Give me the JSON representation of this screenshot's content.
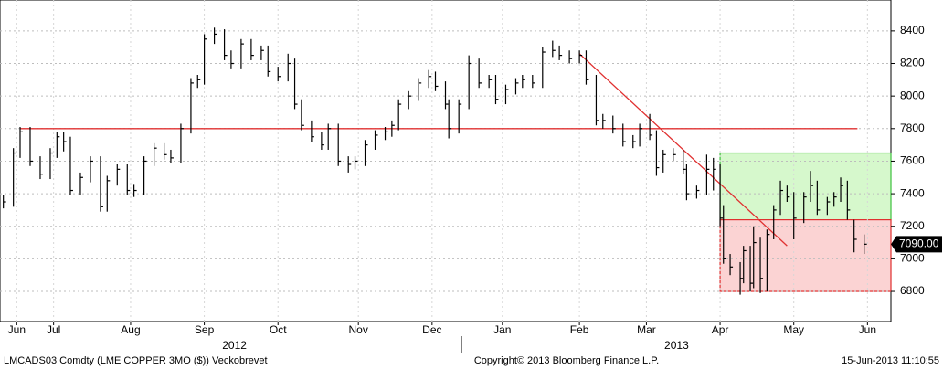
{
  "chart_data": {
    "type": "hlc",
    "footer_left": "LMCADS03 Comdty (LME COPPER    3MO ($)) Veckobrevet",
    "footer_center": "Copyright© 2013 Bloomberg Finance L.P.",
    "footer_right": "15-Jun-2013 11:10:55",
    "x": [
      0,
      3,
      5,
      8,
      11,
      14,
      16,
      18,
      20,
      23,
      26,
      29,
      31,
      34,
      37,
      39,
      42,
      45,
      48,
      50,
      53,
      56,
      58,
      60,
      63,
      66,
      68,
      71,
      74,
      77,
      79,
      82,
      85,
      87,
      89,
      92,
      95,
      97,
      100,
      103,
      105,
      108,
      111,
      114,
      116,
      118,
      121,
      124,
      127,
      129,
      132,
      133,
      136,
      139,
      142,
      145,
      147,
      150,
      153,
      155,
      158,
      161,
      164,
      166,
      169,
      172,
      174,
      177,
      179,
      182,
      185,
      188,
      190,
      193,
      195,
      197,
      200,
      203,
      204,
      207,
      210,
      212,
      214,
      215,
      217,
      220,
      221,
      223,
      224,
      226,
      228,
      230,
      232,
      234,
      236,
      239,
      241,
      243,
      246,
      248,
      250,
      252,
      254,
      257
    ],
    "close": [
      7350,
      7650,
      7780,
      7600,
      7520,
      7650,
      7750,
      7720,
      7420,
      7500,
      7600,
      7320,
      7480,
      7550,
      7420,
      7420,
      7600,
      7680,
      7640,
      7620,
      7800,
      8080,
      8100,
      8350,
      8380,
      8250,
      8200,
      8320,
      8250,
      8280,
      8150,
      8120,
      8200,
      7950,
      7820,
      7750,
      7700,
      7800,
      7600,
      7580,
      7600,
      7700,
      7760,
      7780,
      7820,
      7950,
      8000,
      8080,
      8120,
      8060,
      7950,
      7800,
      7950,
      8200,
      8080,
      8100,
      7980,
      8040,
      8080,
      8100,
      8080,
      8270,
      8280,
      8250,
      8230,
      8250,
      8100,
      7850,
      7850,
      7800,
      7720,
      7720,
      7800,
      7760,
      7560,
      7640,
      7640,
      7550,
      7400,
      7420,
      7550,
      7550,
      7250,
      7000,
      6950,
      6880,
      7050,
      6850,
      7100,
      6880,
      7150,
      7300,
      7420,
      7380,
      7250,
      7380,
      7450,
      7300,
      7350,
      7380,
      7450,
      7300,
      7120,
      7090
    ],
    "high": [
      7390,
      7680,
      7810,
      7810,
      7630,
      7680,
      7780,
      7780,
      7750,
      7530,
      7630,
      7630,
      7510,
      7580,
      7580,
      7460,
      7630,
      7710,
      7710,
      7670,
      7830,
      8110,
      8130,
      8380,
      8420,
      8410,
      8280,
      8350,
      8350,
      8310,
      8310,
      8180,
      8260,
      8230,
      7980,
      7850,
      7780,
      7830,
      7830,
      7630,
      7630,
      7730,
      7790,
      7810,
      7850,
      7980,
      8030,
      8110,
      8160,
      8150,
      8090,
      7980,
      7980,
      8250,
      8230,
      8130,
      8130,
      8070,
      8110,
      8130,
      8130,
      8300,
      8340,
      8310,
      8280,
      8280,
      8280,
      8130,
      7890,
      7880,
      7830,
      7760,
      7830,
      7890,
      7790,
      7670,
      7680,
      7670,
      7580,
      7450,
      7640,
      7620,
      7580,
      7330,
      7030,
      6980,
      7080,
      7080,
      7200,
      7130,
      7180,
      7330,
      7480,
      7450,
      7410,
      7410,
      7540,
      7480,
      7380,
      7410,
      7500,
      7480,
      7240,
      7150
    ],
    "low": [
      7310,
      7320,
      7620,
      7570,
      7490,
      7490,
      7620,
      7660,
      7390,
      7390,
      7470,
      7290,
      7290,
      7450,
      7390,
      7380,
      7390,
      7570,
      7610,
      7590,
      7590,
      7770,
      8050,
      8070,
      8320,
      8220,
      8170,
      8170,
      8220,
      8220,
      8120,
      8090,
      8090,
      7920,
      7790,
      7720,
      7670,
      7670,
      7570,
      7530,
      7550,
      7570,
      7670,
      7730,
      7750,
      7790,
      7920,
      7970,
      8050,
      8030,
      7920,
      7740,
      7770,
      7920,
      8050,
      8050,
      7950,
      7950,
      8010,
      8050,
      8050,
      8050,
      8240,
      8220,
      8200,
      8200,
      8070,
      7820,
      7800,
      7770,
      7690,
      7680,
      7690,
      7730,
      7510,
      7530,
      7600,
      7520,
      7360,
      7370,
      7390,
      7420,
      7200,
      6970,
      6900,
      6780,
      6850,
      6800,
      6820,
      6790,
      6800,
      7120,
      7270,
      7350,
      7120,
      7220,
      7350,
      7270,
      7270,
      7320,
      7350,
      7240,
      7040,
      7030
    ],
    "color": "#000000",
    "xlim": [
      -1,
      265
    ],
    "ylim": [
      6615,
      8590
    ],
    "yticks": [
      6800,
      7000,
      7200,
      7400,
      7600,
      7800,
      8000,
      8200,
      8400
    ],
    "xticks": [
      {
        "value": 4,
        "label": "Jun"
      },
      {
        "value": 15,
        "label": "Jul"
      },
      {
        "value": 38,
        "label": "Aug"
      },
      {
        "value": 60,
        "label": "Sep"
      },
      {
        "value": 82,
        "label": "Oct"
      },
      {
        "value": 106,
        "label": "Nov"
      },
      {
        "value": 128,
        "label": "Dec"
      },
      {
        "value": 149,
        "label": "Jan"
      },
      {
        "value": 172,
        "label": "Feb"
      },
      {
        "value": 192,
        "label": "Mar"
      },
      {
        "value": 214,
        "label": "Apr"
      },
      {
        "value": 236,
        "label": "May"
      },
      {
        "value": 258,
        "label": "Jun"
      }
    ],
    "year_ticks": [
      {
        "value": 69,
        "label": "2012"
      },
      {
        "value": 201,
        "label": "2013"
      }
    ],
    "grid": true,
    "last_label": "7090.00",
    "hline": {
      "value": 7800,
      "x": [
        5,
        255
      ],
      "color": "#e03030"
    },
    "trend": {
      "x": [
        172,
        234
      ],
      "y": [
        8260,
        7080
      ],
      "color": "#e03030"
    },
    "zones": [
      {
        "x": [
          214,
          265
        ],
        "y": [
          7240,
          7650
        ],
        "color": "#d6f8cc",
        "edge": "#3cc03c"
      },
      {
        "x": [
          214,
          265
        ],
        "y": [
          6800,
          7240
        ],
        "color": "#fbd3d3",
        "edge": "#e03030"
      }
    ]
  }
}
